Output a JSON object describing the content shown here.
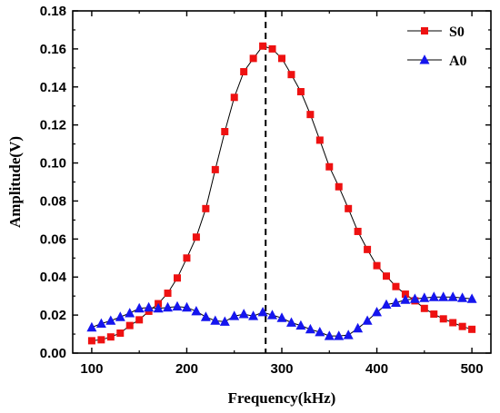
{
  "chart_data": {
    "type": "line",
    "xlabel": "Frequency(kHz)",
    "ylabel": "Amplitude(V)",
    "xlim": [
      80,
      520
    ],
    "ylim": [
      0,
      0.18
    ],
    "x_ticks": [
      100,
      200,
      300,
      400,
      500
    ],
    "x_tick_labels": [
      "100",
      "200",
      "300",
      "400",
      "500"
    ],
    "y_ticks": [
      0,
      0.02,
      0.04,
      0.06,
      0.08,
      0.1,
      0.12,
      0.14,
      0.16,
      0.18
    ],
    "y_tick_labels": [
      "0.00",
      "0.02",
      "0.04",
      "0.06",
      "0.08",
      "0.10",
      "0.12",
      "0.14",
      "0.16",
      "0.18"
    ],
    "grid": false,
    "legend_position": "top-right",
    "vertical_reference_line": {
      "x": 283,
      "style": "dashed"
    },
    "x": [
      100,
      110,
      120,
      130,
      140,
      150,
      160,
      170,
      180,
      190,
      200,
      210,
      220,
      230,
      240,
      250,
      260,
      270,
      280,
      290,
      300,
      310,
      320,
      330,
      340,
      350,
      360,
      370,
      380,
      390,
      400,
      410,
      420,
      430,
      440,
      450,
      460,
      470,
      480,
      490,
      500
    ],
    "series": [
      {
        "name": "S0",
        "marker": "square",
        "color": "#ee1111",
        "line_color": "#000000",
        "values": [
          0.0065,
          0.007,
          0.0085,
          0.0105,
          0.0145,
          0.0175,
          0.022,
          0.026,
          0.0315,
          0.0395,
          0.05,
          0.061,
          0.076,
          0.0965,
          0.1165,
          0.1345,
          0.148,
          0.155,
          0.1615,
          0.16,
          0.155,
          0.1465,
          0.1375,
          0.1255,
          0.112,
          0.098,
          0.0875,
          0.076,
          0.064,
          0.0545,
          0.046,
          0.0405,
          0.035,
          0.031,
          0.0275,
          0.0235,
          0.0205,
          0.018,
          0.016,
          0.014,
          0.0125
        ]
      },
      {
        "name": "A0",
        "marker": "triangle",
        "color": "#1515ee",
        "line_color": "#000000",
        "values": [
          0.0135,
          0.0155,
          0.017,
          0.019,
          0.021,
          0.0235,
          0.024,
          0.0235,
          0.024,
          0.0245,
          0.024,
          0.022,
          0.019,
          0.017,
          0.0165,
          0.0195,
          0.0205,
          0.0195,
          0.0215,
          0.02,
          0.0185,
          0.016,
          0.0145,
          0.0125,
          0.011,
          0.009,
          0.009,
          0.0095,
          0.013,
          0.017,
          0.0215,
          0.0255,
          0.0265,
          0.028,
          0.0285,
          0.029,
          0.0295,
          0.0295,
          0.0295,
          0.029,
          0.0285
        ]
      }
    ]
  }
}
